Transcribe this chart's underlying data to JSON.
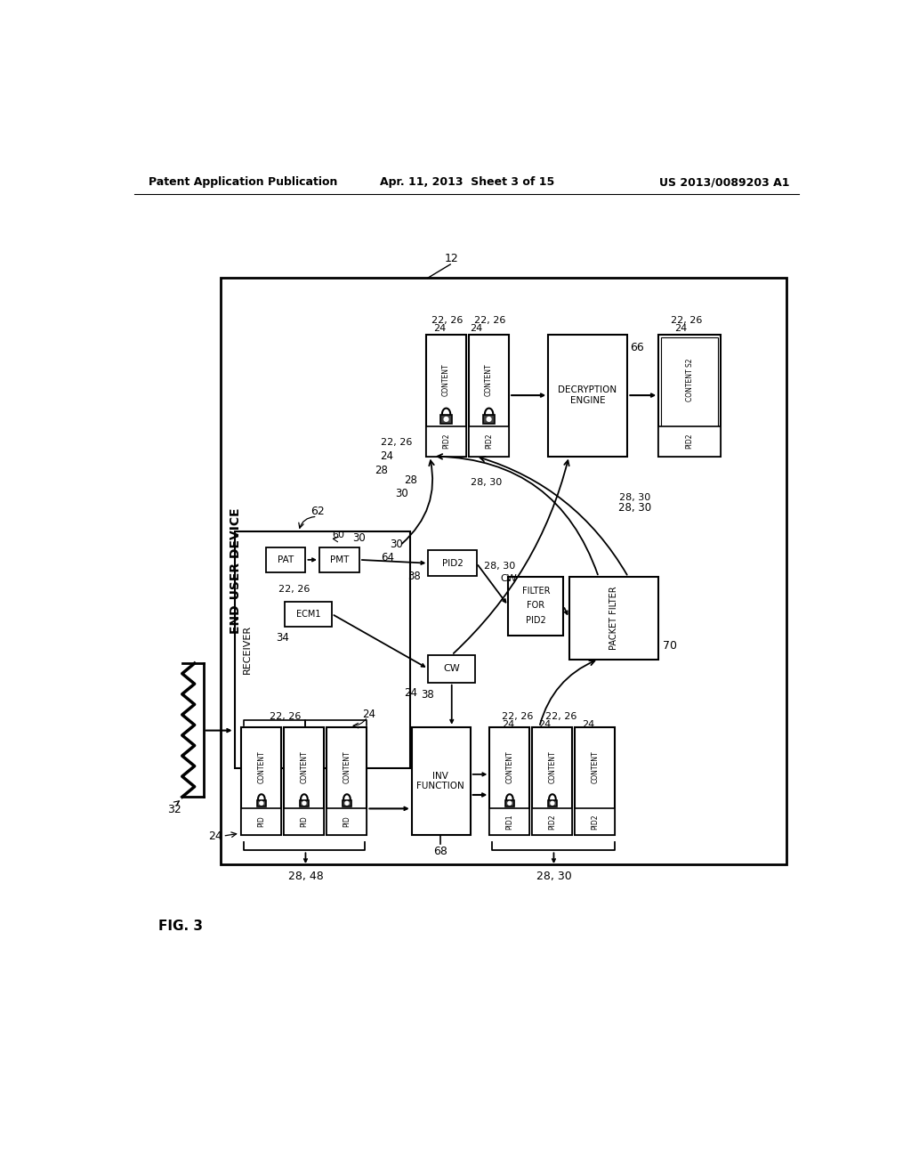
{
  "header_left": "Patent Application Publication",
  "header_center": "Apr. 11, 2013  Sheet 3 of 15",
  "header_right": "US 2013/0089203 A1",
  "figure_label": "FIG. 3",
  "bg_color": "#ffffff"
}
